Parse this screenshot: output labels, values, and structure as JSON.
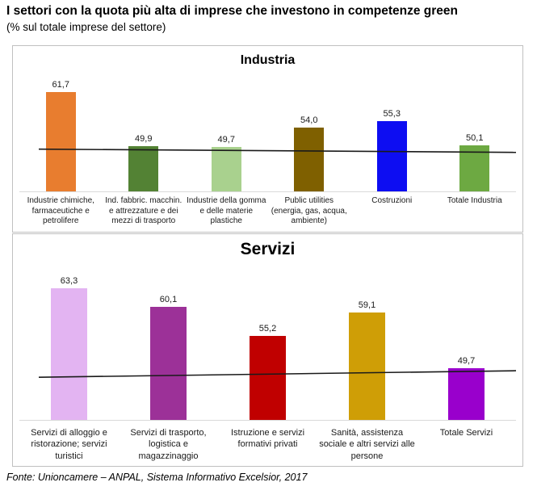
{
  "page": {
    "title": "I settori con la quota più alta di imprese che investono in competenze green",
    "subtitle": "(% sul totale imprese del settore)",
    "source": "Fonte: Unioncamere – ANPAL, Sistema Informativo Excelsior, 2017"
  },
  "chart_data": [
    {
      "type": "bar",
      "title": "Industria",
      "categories": [
        "Industrie chimiche, farmaceutiche e petrolifere",
        "Ind. fabbric. macchin. e attrezzature e dei mezzi di trasporto",
        "Industrie della gomma e delle materie plastiche",
        "Public utilities (energia, gas, acqua, ambiente)",
        "Costruzioni",
        "Totale Industria"
      ],
      "values": [
        61.7,
        49.9,
        49.7,
        54.0,
        55.3,
        50.1
      ],
      "value_labels": [
        "61,7",
        "49,9",
        "49,7",
        "54,0",
        "55,3",
        "50,1"
      ],
      "colors": [
        "#E87D2F",
        "#538234",
        "#A9D18E",
        "#7F6000",
        "#0D0DF2",
        "#6DA942"
      ],
      "unit": "%",
      "xlabel": "",
      "ylabel": "",
      "ylim": [
        40,
        62
      ],
      "grid": false,
      "legend": false,
      "avg_line": {
        "left_value": 49.2,
        "right_value": 48.5
      }
    },
    {
      "type": "bar",
      "title": "Servizi",
      "categories": [
        "Servizi di alloggio e ristorazione; servizi turistici",
        "Servizi di trasporto, logistica e magazzinaggio",
        "Istruzione e servizi formativi privati",
        "Sanità, assistenza sociale e altri servizi alle persone",
        "Totale Servizi"
      ],
      "values": [
        63.3,
        60.1,
        55.2,
        59.1,
        49.7
      ],
      "value_labels": [
        "63,3",
        "60,1",
        "55,2",
        "59,1",
        "49,7"
      ],
      "colors": [
        "#E3B4F2",
        "#9C3198",
        "#C00000",
        "#CF9E06",
        "#9900CC"
      ],
      "unit": "%",
      "xlabel": "",
      "ylabel": "",
      "ylim": [
        41,
        63.5
      ],
      "grid": false,
      "legend": false,
      "avg_line": {
        "left_value": 48.2,
        "right_value": 49.3
      }
    }
  ]
}
